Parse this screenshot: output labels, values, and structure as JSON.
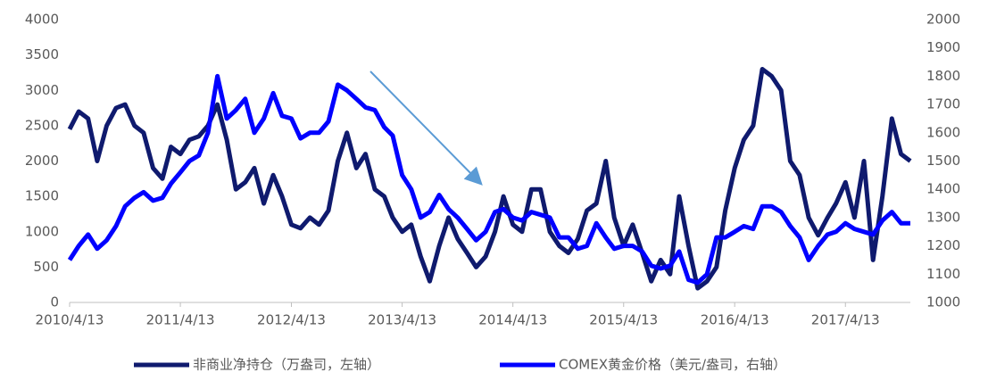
{
  "chart_data": {
    "type": "line",
    "x": [
      "2010/4/13",
      "2010/5/13",
      "2010/6/13",
      "2010/7/13",
      "2010/8/13",
      "2010/9/13",
      "2010/10/13",
      "2010/11/13",
      "2010/12/13",
      "2011/1/13",
      "2011/2/13",
      "2011/3/13",
      "2011/4/13",
      "2011/5/13",
      "2011/6/13",
      "2011/7/13",
      "2011/8/13",
      "2011/9/13",
      "2011/10/13",
      "2011/11/13",
      "2011/12/13",
      "2012/1/13",
      "2012/2/13",
      "2012/3/13",
      "2012/4/13",
      "2012/5/13",
      "2012/6/13",
      "2012/7/13",
      "2012/8/13",
      "2012/9/13",
      "2012/10/13",
      "2012/11/13",
      "2012/12/13",
      "2013/1/13",
      "2013/2/13",
      "2013/3/13",
      "2013/4/13",
      "2013/5/13",
      "2013/6/13",
      "2013/7/13",
      "2013/8/13",
      "2013/9/13",
      "2013/10/13",
      "2013/11/13",
      "2013/12/13",
      "2014/1/13",
      "2014/2/13",
      "2014/3/13",
      "2014/4/13",
      "2014/5/13",
      "2014/6/13",
      "2014/7/13",
      "2014/8/13",
      "2014/9/13",
      "2014/10/13",
      "2014/11/13",
      "2014/12/13",
      "2015/1/13",
      "2015/2/13",
      "2015/3/13",
      "2015/4/13",
      "2015/5/13",
      "2015/6/13",
      "2015/7/13",
      "2015/8/13",
      "2015/9/13",
      "2015/10/13",
      "2015/11/13",
      "2015/12/13",
      "2016/1/13",
      "2016/2/13",
      "2016/3/13",
      "2016/4/13",
      "2016/5/13",
      "2016/6/13",
      "2016/7/13",
      "2016/8/13",
      "2016/9/13",
      "2016/10/13",
      "2016/11/13",
      "2016/12/13",
      "2017/1/13",
      "2017/2/13",
      "2017/3/13",
      "2017/4/13",
      "2017/5/13",
      "2017/6/13",
      "2017/7/13",
      "2017/8/13",
      "2017/9/13",
      "2017/10/13",
      "2017/11/13"
    ],
    "series": [
      {
        "name": "非商业净持仓（万盎司，左轴）",
        "color": "#0f1a6e",
        "values": [
          2450,
          2700,
          2600,
          2000,
          2500,
          2750,
          2800,
          2500,
          2400,
          1900,
          1750,
          2200,
          2100,
          2300,
          2350,
          2500,
          2800,
          2300,
          1600,
          1700,
          1900,
          1400,
          1800,
          1500,
          1100,
          1050,
          1200,
          1100,
          1300,
          2000,
          2400,
          1900,
          2100,
          1600,
          1500,
          1200,
          1000,
          1100,
          650,
          300,
          800,
          1200,
          900,
          700,
          500,
          650,
          1000,
          1500,
          1100,
          1000,
          1600,
          1600,
          1000,
          800,
          700,
          900,
          1300,
          1400,
          2000,
          1200,
          800,
          1100,
          700,
          300,
          600,
          400,
          1500,
          800,
          200,
          300,
          500,
          1300,
          1900,
          2300,
          2500,
          3300,
          3200,
          3000,
          2000,
          1800,
          1200,
          950,
          1200,
          1400,
          1700,
          1200,
          2000,
          600,
          1500,
          2600,
          2100,
          2000
        ]
      },
      {
        "name": "COMEX黄金价格（美元/盎司，右轴）",
        "color": "#0000ff",
        "axis": "y2",
        "values": [
          1150,
          1200,
          1240,
          1190,
          1220,
          1270,
          1340,
          1370,
          1390,
          1360,
          1370,
          1420,
          1460,
          1500,
          1520,
          1600,
          1800,
          1650,
          1680,
          1720,
          1600,
          1650,
          1740,
          1660,
          1650,
          1580,
          1600,
          1600,
          1640,
          1770,
          1750,
          1720,
          1690,
          1680,
          1620,
          1590,
          1450,
          1400,
          1300,
          1320,
          1380,
          1330,
          1300,
          1260,
          1220,
          1250,
          1320,
          1330,
          1300,
          1290,
          1320,
          1310,
          1300,
          1230,
          1230,
          1190,
          1200,
          1280,
          1230,
          1190,
          1200,
          1200,
          1180,
          1130,
          1120,
          1130,
          1180,
          1080,
          1070,
          1100,
          1230,
          1230,
          1250,
          1270,
          1260,
          1340,
          1340,
          1320,
          1270,
          1230,
          1150,
          1200,
          1240,
          1250,
          1280,
          1260,
          1250,
          1240,
          1290,
          1320,
          1280,
          1280
        ]
      }
    ],
    "xlim": [
      "2010/4/13",
      "2017/11/13"
    ],
    "xticks": [
      "2010/4/13",
      "2011/4/13",
      "2012/4/13",
      "2013/4/13",
      "2014/4/13",
      "2015/4/13",
      "2016/4/13",
      "2017/4/13"
    ],
    "ylim": [
      0,
      4000
    ],
    "yticks": [
      0,
      500,
      1000,
      1500,
      2000,
      2500,
      3000,
      3500,
      4000
    ],
    "y2lim": [
      1000,
      2000
    ],
    "y2ticks": [
      1000,
      1100,
      1200,
      1300,
      1400,
      1500,
      1600,
      1700,
      1800,
      1900,
      2000
    ],
    "legend": "bottom"
  }
}
